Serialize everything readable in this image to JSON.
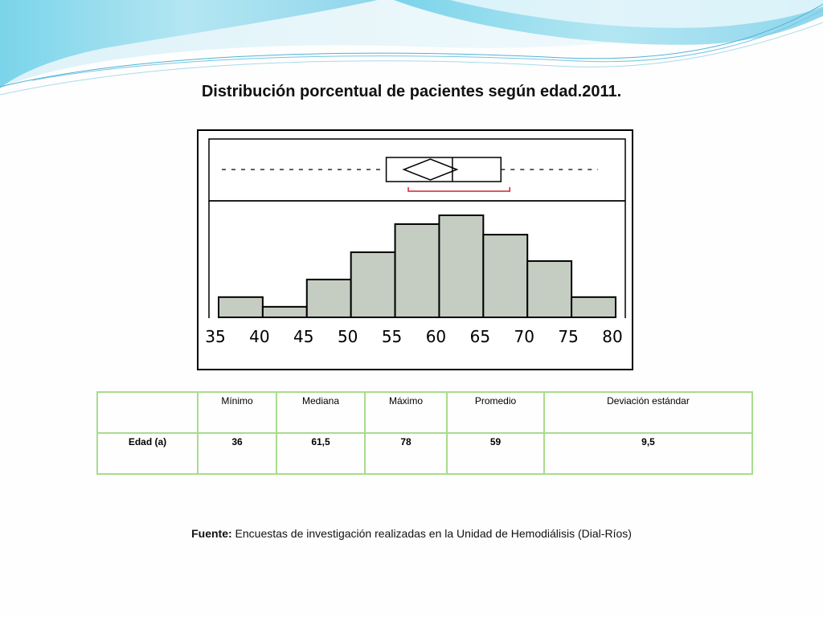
{
  "slide": {
    "title": "Distribución porcentual de pacientes según edad.2011."
  },
  "chart_data": {
    "type": "bar",
    "title": "",
    "xlabel": "",
    "ylabel": "",
    "x_ticks": [
      35,
      40,
      45,
      50,
      55,
      60,
      65,
      70,
      75,
      80
    ],
    "bin_edges": [
      35,
      40,
      45,
      50,
      55,
      60,
      65,
      70,
      75,
      80
    ],
    "values": [
      2.3,
      1.2,
      4.3,
      7.4,
      10.6,
      11.6,
      9.4,
      6.4,
      2.3
    ],
    "boxplot": {
      "whisker_low": 36,
      "q1": 54,
      "median": 61.5,
      "q3": 67,
      "whisker_high": 78,
      "mean": 59,
      "mean_ci": [
        56,
        62
      ],
      "shortest_half": [
        56.5,
        68
      ]
    },
    "colors": {
      "bar_fill": "#c5cdc2",
      "bar_stroke": "#000000",
      "shortest_half": "#d22030"
    }
  },
  "table": {
    "headers": [
      "",
      "Mínimo",
      "Mediana",
      "Máximo",
      "Promedio",
      "Deviación estándar"
    ],
    "rows": [
      [
        "Edad (a)",
        "36",
        "61,5",
        "78",
        "59",
        "9,5"
      ]
    ],
    "border_color": "#a8dc8c"
  },
  "source": {
    "label": "Fuente:",
    "text": " Encuestas de investigación realizadas en la Unidad de Hemodiálisis (Dial-Ríos)"
  }
}
